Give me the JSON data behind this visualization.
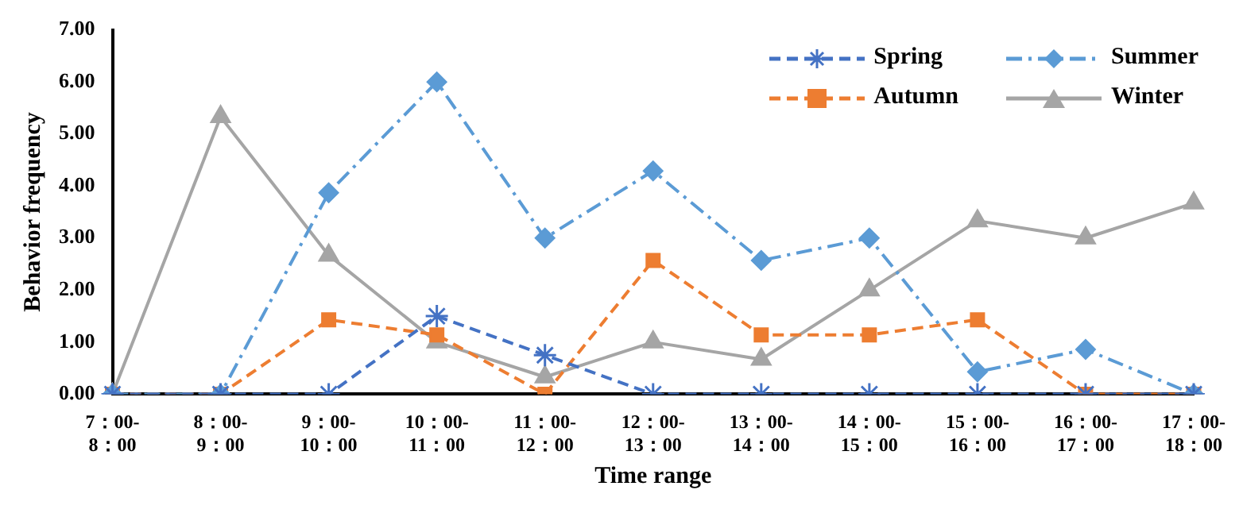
{
  "chart_data": {
    "type": "line",
    "xlabel": "Time range",
    "ylabel": "Behavior frequency",
    "categories": [
      "7：00-8：00",
      "8：00-9：00",
      "9：00-10：00",
      "10：00-11：00",
      "11：00-12：00",
      "12：00-13：00",
      "13：00-14：00",
      "14：00-15：00",
      "15：00-16：00",
      "16：00-17：00",
      "17：00-18：00"
    ],
    "series": [
      {
        "name": "Spring",
        "color": "#4472c4",
        "marker": "cross",
        "line_style": "dashed",
        "values": [
          0,
          0,
          0,
          1.5,
          0.75,
          0,
          0,
          0,
          0,
          0,
          0
        ]
      },
      {
        "name": "Summer",
        "color": "#5b9bd5",
        "marker": "diamond",
        "line_style": "dashdot",
        "values": [
          0,
          0,
          3.87,
          6,
          3,
          4.29,
          2.57,
          3,
          0.43,
          0.86,
          0
        ]
      },
      {
        "name": "Autumn",
        "color": "#ed7d31",
        "marker": "square",
        "line_style": "dashed",
        "values": [
          0,
          0,
          1.43,
          1.14,
          0,
          2.57,
          1.14,
          1.14,
          1.43,
          0,
          0
        ]
      },
      {
        "name": "Winter",
        "color": "#a5a5a5",
        "marker": "triangle",
        "line_style": "solid",
        "values": [
          0,
          5.33,
          2.67,
          1,
          0.33,
          1,
          0.67,
          2,
          3.33,
          3,
          3.67
        ]
      }
    ],
    "ylim": [
      0,
      7
    ],
    "yticks": [
      {
        "value": 0,
        "label": "0.00"
      },
      {
        "value": 1,
        "label": "1.00"
      },
      {
        "value": 2,
        "label": "2.00"
      },
      {
        "value": 3,
        "label": "3.00"
      },
      {
        "value": 4,
        "label": "4.00"
      },
      {
        "value": 5,
        "label": "5.00"
      },
      {
        "value": 6,
        "label": "6.00"
      },
      {
        "value": 7,
        "label": "7.00"
      }
    ],
    "grid": false,
    "legend": "top right"
  }
}
